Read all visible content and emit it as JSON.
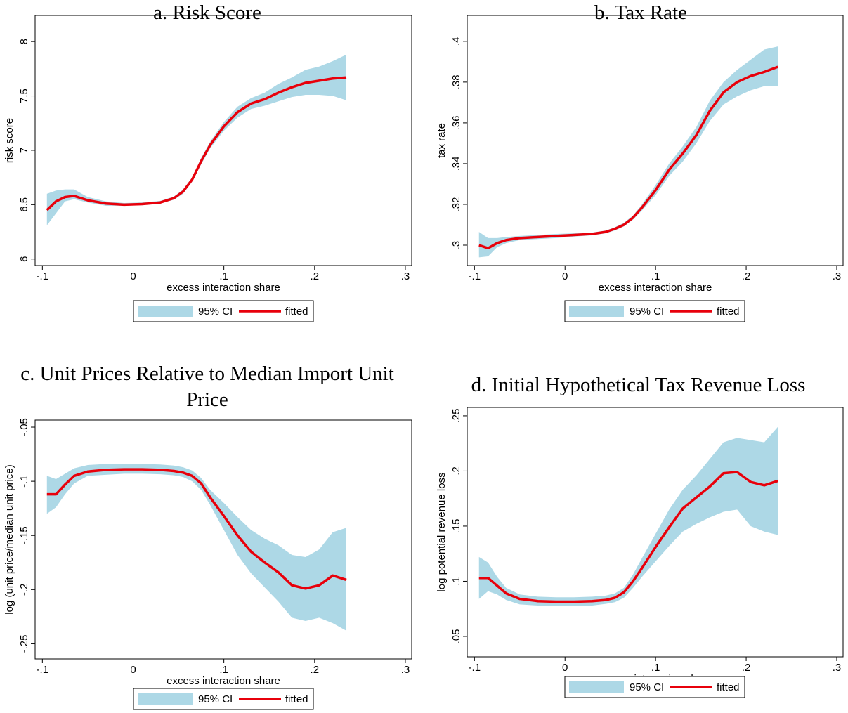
{
  "chart_data": [
    {
      "type": "line",
      "title": "a. Risk Score",
      "xlabel": "excess interaction share",
      "ylabel": "risk score",
      "x": [
        -0.095,
        -0.085,
        -0.075,
        -0.065,
        -0.05,
        -0.03,
        -0.01,
        0.01,
        0.03,
        0.045,
        0.055,
        0.065,
        0.075,
        0.085,
        0.1,
        0.115,
        0.13,
        0.145,
        0.16,
        0.175,
        0.19,
        0.205,
        0.22,
        0.235
      ],
      "series": [
        {
          "name": "fitted",
          "color": "#e8000b",
          "values": [
            6.45,
            6.53,
            6.57,
            6.58,
            6.54,
            6.51,
            6.5,
            6.505,
            6.52,
            6.56,
            6.62,
            6.73,
            6.9,
            7.05,
            7.22,
            7.35,
            7.43,
            7.47,
            7.53,
            7.58,
            7.62,
            7.64,
            7.66,
            7.67
          ]
        }
      ],
      "band": {
        "name": "95% CI",
        "color": "#add8e6",
        "lower": [
          6.31,
          6.42,
          6.53,
          6.55,
          6.52,
          6.49,
          6.49,
          6.495,
          6.51,
          6.545,
          6.6,
          6.71,
          6.87,
          7.02,
          7.18,
          7.3,
          7.38,
          7.41,
          7.45,
          7.49,
          7.51,
          7.51,
          7.5,
          7.46
        ],
        "upper": [
          6.6,
          6.63,
          6.64,
          6.64,
          6.57,
          6.53,
          6.515,
          6.52,
          6.535,
          6.575,
          6.64,
          6.75,
          6.93,
          7.08,
          7.26,
          7.4,
          7.48,
          7.53,
          7.61,
          7.67,
          7.74,
          7.77,
          7.82,
          7.88
        ]
      },
      "xlim": [
        -0.108,
        0.307
      ],
      "xticks": [
        {
          "value": -0.1,
          "label": "-.1"
        },
        0,
        {
          "value": 0.1,
          "label": ".1"
        },
        {
          "value": 0.2,
          "label": ".2"
        },
        {
          "value": 0.3,
          "label": ".3"
        }
      ],
      "ylim": [
        5.94,
        8.24
      ],
      "yticks": [
        6,
        6.5,
        7,
        7.5,
        8
      ]
    },
    {
      "type": "line",
      "title": "b. Tax Rate",
      "xlabel": "excess interaction share",
      "ylabel": "tax rate",
      "x": [
        -0.095,
        -0.085,
        -0.075,
        -0.065,
        -0.05,
        -0.03,
        -0.01,
        0.01,
        0.03,
        0.045,
        0.055,
        0.065,
        0.075,
        0.085,
        0.1,
        0.115,
        0.13,
        0.145,
        0.16,
        0.175,
        0.19,
        0.205,
        0.22,
        0.235
      ],
      "series": [
        {
          "name": "fitted",
          "color": "#e8000b",
          "values": [
            0.3,
            0.2985,
            0.301,
            0.3025,
            0.3035,
            0.304,
            0.3045,
            0.305,
            0.3055,
            0.3065,
            0.308,
            0.31,
            0.3135,
            0.3185,
            0.327,
            0.337,
            0.345,
            0.354,
            0.366,
            0.375,
            0.38,
            0.383,
            0.385,
            0.3875
          ]
        }
      ],
      "band": {
        "name": "95% CI",
        "color": "#add8e6",
        "lower": [
          0.294,
          0.2945,
          0.299,
          0.301,
          0.3025,
          0.303,
          0.3035,
          0.3042,
          0.3048,
          0.3058,
          0.3072,
          0.3092,
          0.3125,
          0.317,
          0.3245,
          0.334,
          0.341,
          0.35,
          0.361,
          0.369,
          0.373,
          0.376,
          0.378,
          0.378
        ],
        "upper": [
          0.3065,
          0.3035,
          0.3035,
          0.304,
          0.3045,
          0.305,
          0.3055,
          0.3058,
          0.3062,
          0.3072,
          0.3088,
          0.311,
          0.3145,
          0.32,
          0.3295,
          0.34,
          0.3485,
          0.358,
          0.371,
          0.38,
          0.386,
          0.391,
          0.396,
          0.3975
        ]
      },
      "xlim": [
        -0.108,
        0.307
      ],
      "xticks": [
        {
          "value": -0.1,
          "label": "-.1"
        },
        0,
        {
          "value": 0.1,
          "label": ".1"
        },
        {
          "value": 0.2,
          "label": ".2"
        },
        {
          "value": 0.3,
          "label": ".3"
        }
      ],
      "ylim": [
        0.29,
        0.4127
      ],
      "yticks": [
        {
          "value": 0.3,
          "label": ".3"
        },
        {
          "value": 0.32,
          "label": ".32"
        },
        {
          "value": 0.34,
          "label": ".34"
        },
        {
          "value": 0.36,
          "label": ".36"
        },
        {
          "value": 0.38,
          "label": ".38"
        },
        {
          "value": 0.4,
          "label": ".4"
        }
      ]
    },
    {
      "type": "line",
      "title": "c. Unit Prices Relative to Median Import Unit Price",
      "xlabel": "excess interaction share",
      "ylabel": "log (unit price/median unit price)",
      "x": [
        -0.095,
        -0.085,
        -0.075,
        -0.065,
        -0.05,
        -0.03,
        -0.01,
        0.01,
        0.03,
        0.045,
        0.055,
        0.065,
        0.075,
        0.085,
        0.1,
        0.115,
        0.13,
        0.145,
        0.16,
        0.175,
        0.19,
        0.205,
        0.22,
        0.235
      ],
      "series": [
        {
          "name": "fitted",
          "color": "#e8000b",
          "values": [
            -0.112,
            -0.112,
            -0.103,
            -0.095,
            -0.091,
            -0.0895,
            -0.089,
            -0.089,
            -0.0895,
            -0.0905,
            -0.092,
            -0.095,
            -0.102,
            -0.115,
            -0.132,
            -0.15,
            -0.165,
            -0.175,
            -0.184,
            -0.196,
            -0.199,
            -0.196,
            -0.187,
            -0.191
          ]
        }
      ],
      "band": {
        "name": "95% CI",
        "color": "#add8e6",
        "lower": [
          -0.13,
          -0.124,
          -0.112,
          -0.102,
          -0.095,
          -0.094,
          -0.093,
          -0.093,
          -0.0935,
          -0.0945,
          -0.096,
          -0.1,
          -0.108,
          -0.122,
          -0.145,
          -0.168,
          -0.185,
          -0.198,
          -0.211,
          -0.226,
          -0.229,
          -0.226,
          -0.231,
          -0.238
        ],
        "upper": [
          -0.095,
          -0.098,
          -0.093,
          -0.088,
          -0.085,
          -0.084,
          -0.084,
          -0.084,
          -0.0845,
          -0.0855,
          -0.087,
          -0.09,
          -0.097,
          -0.108,
          -0.12,
          -0.133,
          -0.145,
          -0.153,
          -0.159,
          -0.168,
          -0.17,
          -0.163,
          -0.147,
          -0.143
        ]
      },
      "xlim": [
        -0.108,
        0.307
      ],
      "xticks": [
        {
          "value": -0.1,
          "label": "-.1"
        },
        0,
        {
          "value": 0.1,
          "label": ".1"
        },
        {
          "value": 0.2,
          "label": ".2"
        },
        {
          "value": 0.3,
          "label": ".3"
        }
      ],
      "ylim": [
        -0.264,
        -0.0435
      ],
      "yticks": [
        {
          "value": -0.25,
          "label": "-.25"
        },
        {
          "value": -0.2,
          "label": "-.2"
        },
        {
          "value": -0.15,
          "label": "-.15"
        },
        {
          "value": -0.1,
          "label": "-.1"
        },
        {
          "value": -0.05,
          "label": "-.05"
        }
      ]
    },
    {
      "type": "line",
      "title": "d. Initial Hypothetical Tax Revenue Loss",
      "xlabel": "excess interaction share",
      "ylabel": "log potential revenue loss",
      "x": [
        -0.095,
        -0.085,
        -0.075,
        -0.065,
        -0.05,
        -0.03,
        -0.01,
        0.01,
        0.03,
        0.045,
        0.055,
        0.065,
        0.075,
        0.085,
        0.1,
        0.115,
        0.13,
        0.145,
        0.16,
        0.175,
        0.19,
        0.205,
        0.22,
        0.235
      ],
      "series": [
        {
          "name": "fitted",
          "color": "#e8000b",
          "values": [
            0.103,
            0.103,
            0.096,
            0.089,
            0.084,
            0.082,
            0.0815,
            0.0815,
            0.082,
            0.083,
            0.085,
            0.09,
            0.1,
            0.112,
            0.131,
            0.149,
            0.166,
            0.176,
            0.186,
            0.198,
            0.199,
            0.19,
            0.187,
            0.191
          ]
        }
      ],
      "band": {
        "name": "95% CI",
        "color": "#add8e6",
        "lower": [
          0.084,
          0.091,
          0.088,
          0.083,
          0.079,
          0.078,
          0.078,
          0.078,
          0.078,
          0.0795,
          0.081,
          0.085,
          0.094,
          0.104,
          0.118,
          0.132,
          0.145,
          0.152,
          0.158,
          0.163,
          0.165,
          0.15,
          0.145,
          0.142
        ],
        "upper": [
          0.122,
          0.117,
          0.104,
          0.094,
          0.088,
          0.086,
          0.0855,
          0.0855,
          0.086,
          0.087,
          0.089,
          0.094,
          0.106,
          0.121,
          0.143,
          0.165,
          0.183,
          0.196,
          0.211,
          0.226,
          0.23,
          0.228,
          0.226,
          0.24
        ]
      },
      "xlim": [
        -0.108,
        0.307
      ],
      "xticks": [
        {
          "value": -0.1,
          "label": "-.1"
        },
        0,
        {
          "value": 0.1,
          "label": ".1"
        },
        {
          "value": 0.2,
          "label": ".2"
        },
        {
          "value": 0.3,
          "label": ".3"
        }
      ],
      "ylim": [
        0.0315,
        0.2576
      ],
      "yticks": [
        {
          "value": 0.05,
          "label": ".05"
        },
        {
          "value": 0.1,
          "label": ".1"
        },
        {
          "value": 0.15,
          "label": ".15"
        },
        {
          "value": 0.2,
          "label": ".2"
        },
        {
          "value": 0.25,
          "label": ".25"
        }
      ]
    }
  ]
}
